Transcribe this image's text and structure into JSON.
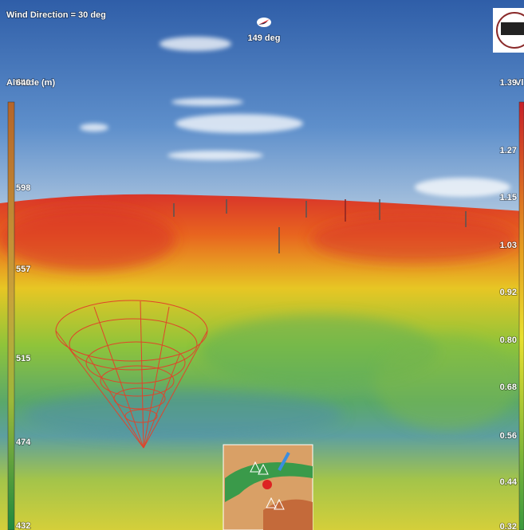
{
  "overlay": {
    "wind_direction": "Wind Direction = 30 deg",
    "heading": "149 deg"
  },
  "altitude_scale": {
    "title": "Altitude (m)",
    "labels": [
      "640",
      "598",
      "557",
      "515",
      "474",
      "432"
    ]
  },
  "speed_scale": {
    "title": "Vl",
    "labels": [
      "1.39",
      "1.27",
      "1.15",
      "1.03",
      "0.92",
      "0.80",
      "0.68",
      "0.56",
      "0.44",
      "0.32"
    ]
  }
}
